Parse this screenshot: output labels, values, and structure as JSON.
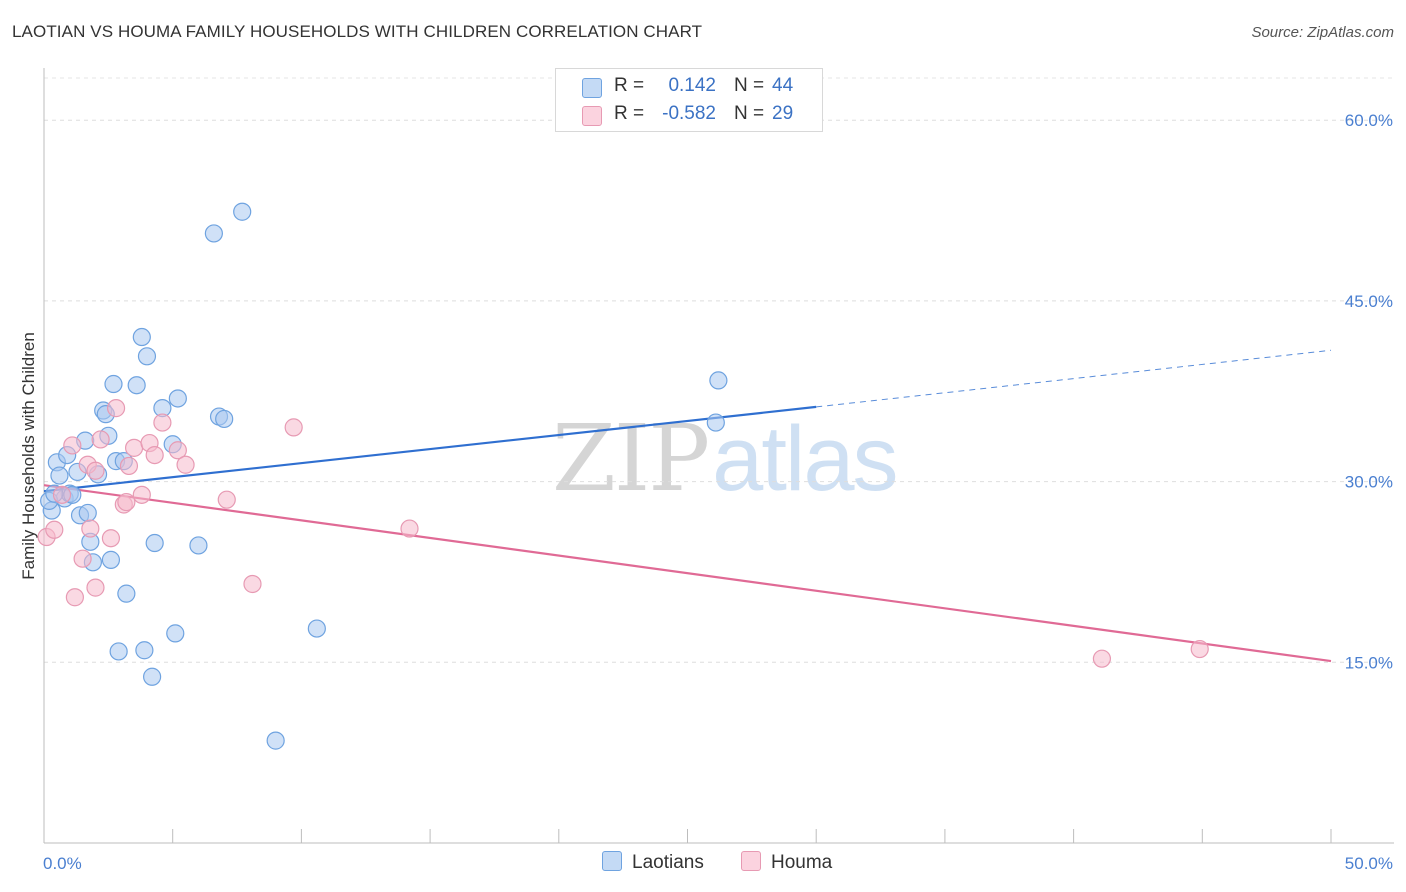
{
  "title": "LAOTIAN VS HOUMA FAMILY HOUSEHOLDS WITH CHILDREN CORRELATION CHART",
  "source": "Source: ZipAtlas.com",
  "watermark": {
    "zip": "ZIP",
    "atlas": "atlas"
  },
  "legend": {
    "rows": [
      {
        "r_label": "R =",
        "r_value": "0.142",
        "n_label": "N =",
        "n_value": "44",
        "color": "#aac9f0"
      },
      {
        "r_label": "R =",
        "r_value": "-0.582",
        "n_label": "N =",
        "n_value": "29",
        "color": "#f5b9cc"
      }
    ]
  },
  "bottom_legend": [
    {
      "label": "Laotians",
      "color": "#aac9f0"
    },
    {
      "label": "Houma",
      "color": "#f5b9cc"
    }
  ],
  "chart_data": {
    "type": "scatter",
    "ylabel": "Family Households with Children",
    "xlabel": "",
    "xlim": [
      0,
      50
    ],
    "ylim": [
      0,
      64
    ],
    "x_tick_labels": [
      {
        "value": 0,
        "label": "0.0%"
      },
      {
        "value": 50,
        "label": "50.0%"
      }
    ],
    "y_tick_labels": [
      {
        "value": 15,
        "label": "15.0%"
      },
      {
        "value": 30,
        "label": "30.0%"
      },
      {
        "value": 45,
        "label": "45.0%"
      },
      {
        "value": 60,
        "label": "60.0%"
      }
    ],
    "gridlines_y": [
      15,
      30,
      45,
      60
    ],
    "series": [
      {
        "name": "Laotians",
        "color": "#6fa3e0",
        "fill": "#aac9f0",
        "trend": {
          "x0": 0,
          "y0": 29.2,
          "x1": 30,
          "y1": 36.2,
          "x_dash_end": 50,
          "y_dash_end": 40.9,
          "color": "#2f6fd0"
        },
        "points": [
          [
            0.3,
            27.6
          ],
          [
            0.5,
            31.6
          ],
          [
            0.6,
            30.5
          ],
          [
            0.8,
            28.6
          ],
          [
            0.9,
            32.2
          ],
          [
            1.0,
            29.0
          ],
          [
            1.1,
            28.9
          ],
          [
            1.3,
            30.8
          ],
          [
            1.4,
            27.2
          ],
          [
            1.6,
            33.4
          ],
          [
            1.7,
            27.4
          ],
          [
            1.8,
            25.0
          ],
          [
            1.9,
            23.3
          ],
          [
            2.1,
            30.6
          ],
          [
            2.3,
            35.9
          ],
          [
            2.4,
            35.6
          ],
          [
            2.5,
            33.8
          ],
          [
            2.6,
            23.5
          ],
          [
            2.7,
            38.1
          ],
          [
            2.8,
            31.7
          ],
          [
            2.9,
            15.9
          ],
          [
            3.1,
            31.7
          ],
          [
            3.2,
            20.7
          ],
          [
            3.6,
            38.0
          ],
          [
            3.8,
            42.0
          ],
          [
            3.9,
            16.0
          ],
          [
            4.0,
            40.4
          ],
          [
            4.2,
            13.8
          ],
          [
            4.3,
            24.9
          ],
          [
            4.6,
            36.1
          ],
          [
            5.0,
            33.1
          ],
          [
            5.1,
            17.4
          ],
          [
            5.2,
            36.9
          ],
          [
            6.0,
            24.7
          ],
          [
            6.6,
            50.6
          ],
          [
            6.8,
            35.4
          ],
          [
            7.0,
            35.2
          ],
          [
            7.7,
            52.4
          ],
          [
            9.0,
            8.5
          ],
          [
            10.6,
            17.8
          ],
          [
            26.1,
            34.9
          ],
          [
            26.2,
            38.4
          ],
          [
            0.2,
            28.4
          ],
          [
            0.4,
            29.0
          ]
        ]
      },
      {
        "name": "Houma",
        "color": "#e79ab3",
        "fill": "#f5b9cc",
        "trend": {
          "x0": 0,
          "y0": 29.7,
          "x1": 50,
          "y1": 15.1,
          "color": "#e06a95"
        },
        "points": [
          [
            0.1,
            25.4
          ],
          [
            0.4,
            26.0
          ],
          [
            0.7,
            28.9
          ],
          [
            1.1,
            33.0
          ],
          [
            1.2,
            20.4
          ],
          [
            1.5,
            23.6
          ],
          [
            1.7,
            31.4
          ],
          [
            1.8,
            26.1
          ],
          [
            2.0,
            21.2
          ],
          [
            2.2,
            33.5
          ],
          [
            2.6,
            25.3
          ],
          [
            2.8,
            36.1
          ],
          [
            3.1,
            28.1
          ],
          [
            3.3,
            31.3
          ],
          [
            3.5,
            32.8
          ],
          [
            4.1,
            33.2
          ],
          [
            4.3,
            32.2
          ],
          [
            4.6,
            34.9
          ],
          [
            5.2,
            32.6
          ],
          [
            5.5,
            31.4
          ],
          [
            7.1,
            28.5
          ],
          [
            8.1,
            21.5
          ],
          [
            9.7,
            34.5
          ],
          [
            14.2,
            26.1
          ],
          [
            41.1,
            15.3
          ],
          [
            44.9,
            16.1
          ],
          [
            3.2,
            28.3
          ],
          [
            3.8,
            28.9
          ],
          [
            2.0,
            30.9
          ]
        ]
      }
    ]
  }
}
